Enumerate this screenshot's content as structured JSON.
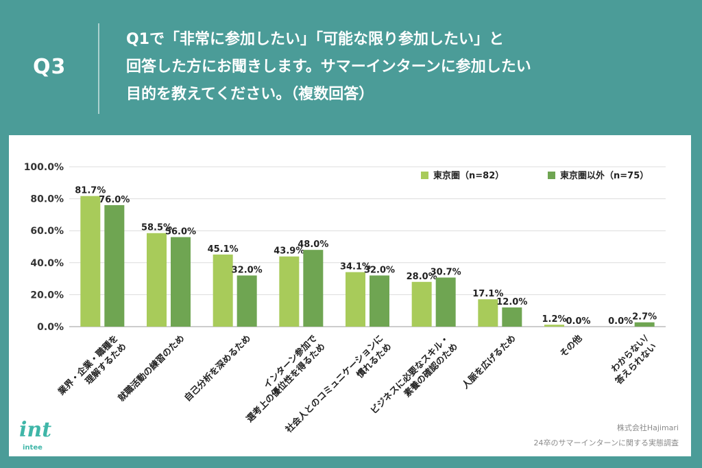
{
  "header": {
    "label": "Q3",
    "lines": [
      "Q1で「非常に参加したい」「可能な限り参加したい」と",
      "回答した方にお聞きします。サマーインターンに参加したい",
      "目的を教えてください。（複数回答）"
    ]
  },
  "footer": {
    "logo_mark": "int",
    "logo_text": "intee",
    "source_company": "株式会社Hajimari",
    "source_title": "24卒のサマーインターンに関する実態調査"
  },
  "colors": {
    "background": "#4b9c98",
    "series1": "#a8cb5a",
    "series2": "#6fa552"
  },
  "chart_data": {
    "type": "bar",
    "title": "",
    "xlabel": "",
    "ylabel": "",
    "ylim": [
      0,
      100
    ],
    "y_ticks": [
      "0.0%",
      "20.0%",
      "40.0%",
      "60.0%",
      "80.0%",
      "100.0%"
    ],
    "grid": true,
    "legend_position": "top-right",
    "categories": [
      [
        "業界・企業・職種を",
        "理解するため"
      ],
      [
        "就職活動の練習のため"
      ],
      [
        "自己分析を深めるため"
      ],
      [
        "インターン参加で",
        "選考上の優位性を得るため"
      ],
      [
        "社会人とのコミュニケーションに",
        "慣れるため"
      ],
      [
        "ビジネスに必要なスキル・",
        "素養の確認のため"
      ],
      [
        "人脈を広げるため"
      ],
      [
        "その他"
      ],
      [
        "わからない/",
        "答えられない"
      ]
    ],
    "series": [
      {
        "name": "東京圏（n=82）",
        "values": [
          81.7,
          58.5,
          45.1,
          43.9,
          34.1,
          28.0,
          17.1,
          1.2,
          0.0
        ],
        "labels": [
          "81.7%",
          "58.5%",
          "45.1%",
          "43.9%",
          "34.1%",
          "28.0%",
          "17.1%",
          "1.2%",
          "0.0%"
        ]
      },
      {
        "name": "東京圏以外（n=75）",
        "values": [
          76.0,
          56.0,
          32.0,
          48.0,
          32.0,
          30.7,
          12.0,
          0.0,
          2.7
        ],
        "labels": [
          "76.0%",
          "56.0%",
          "32.0%",
          "48.0%",
          "32.0%",
          "30.7%",
          "12.0%",
          "0.0%",
          "2.7%"
        ]
      }
    ]
  }
}
